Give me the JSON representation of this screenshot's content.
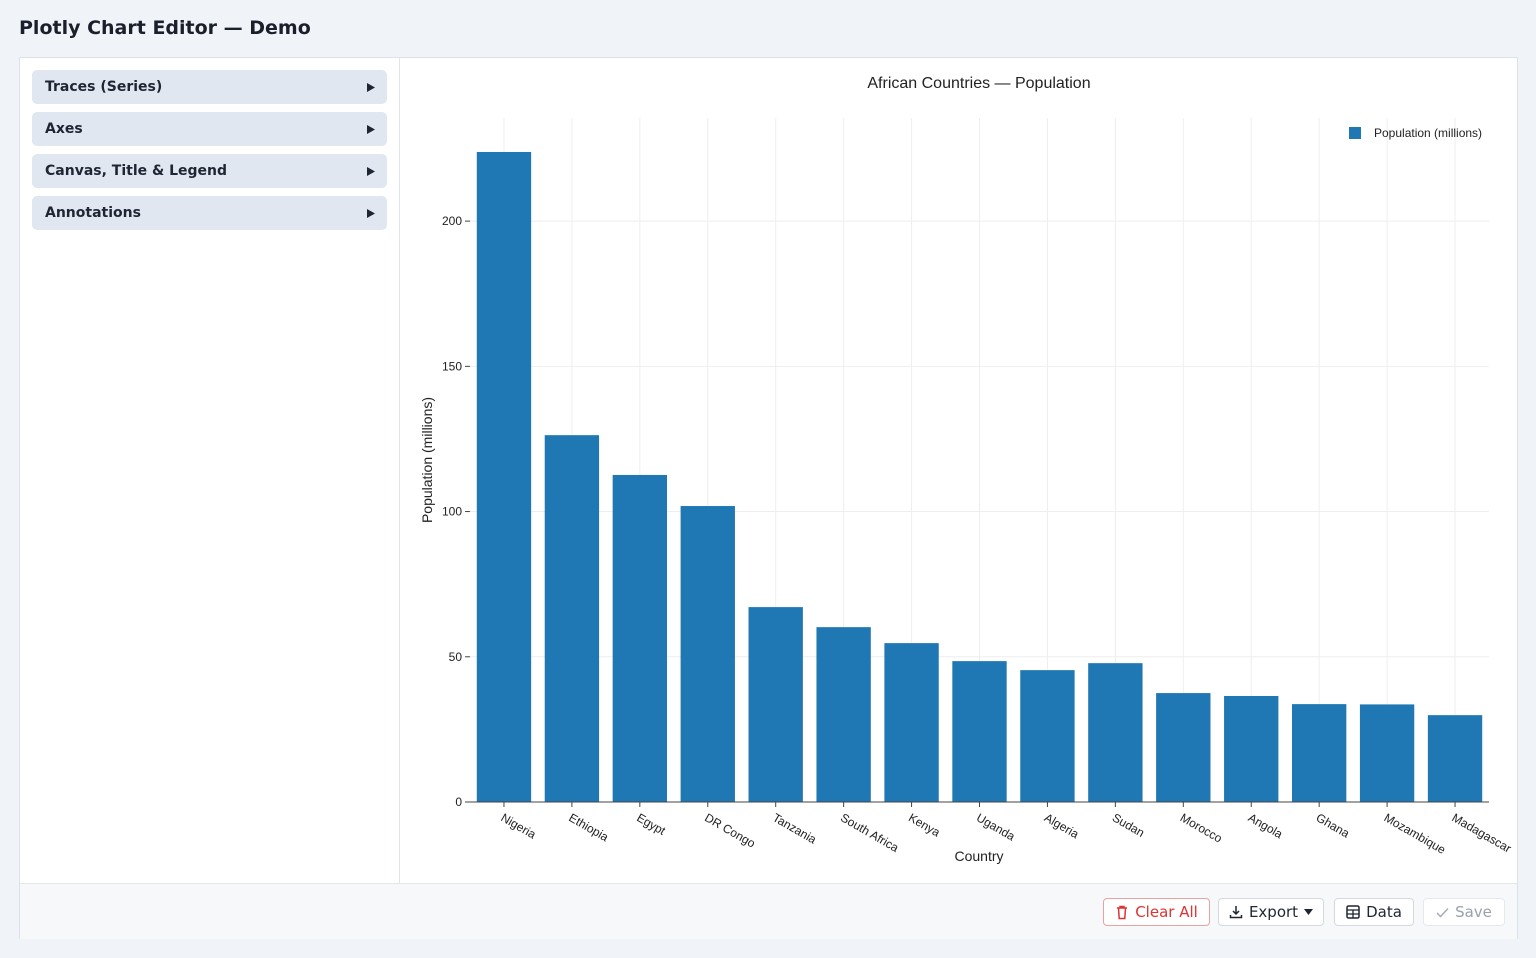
{
  "header": {
    "title": "Plotly Chart Editor — Demo"
  },
  "sidebar": {
    "sections": [
      "Traces (Series)",
      "Axes",
      "Canvas, Title & Legend",
      "Annotations"
    ]
  },
  "footer": {
    "buttons": [
      "Clear All",
      "Export",
      "Data",
      "Save"
    ]
  },
  "chart_data": {
    "type": "bar",
    "title": "African Countries — Population",
    "x_label": "Country",
    "y_label": "Population (millions)",
    "categories": [
      "Nigeria",
      "Ethiopia",
      "Egypt",
      "DR Congo",
      "Tanzania",
      "South Africa",
      "Kenya",
      "Uganda",
      "Algeria",
      "Sudan",
      "Morocco",
      "Angola",
      "Ghana",
      "Mozambique",
      "Madagascar"
    ],
    "series": [
      {
        "name": "Population (millions)",
        "color": "#1f77b4",
        "values": [
          223.8,
          126.3,
          112.6,
          101.9,
          67.1,
          60.2,
          54.7,
          48.5,
          45.4,
          47.8,
          37.5,
          36.5,
          33.7,
          33.6,
          29.9
        ]
      }
    ],
    "ylim": [
      0,
      235.5
    ],
    "yticks": [
      0,
      50,
      100,
      150,
      200
    ],
    "grid": true,
    "legend": "top-right"
  }
}
